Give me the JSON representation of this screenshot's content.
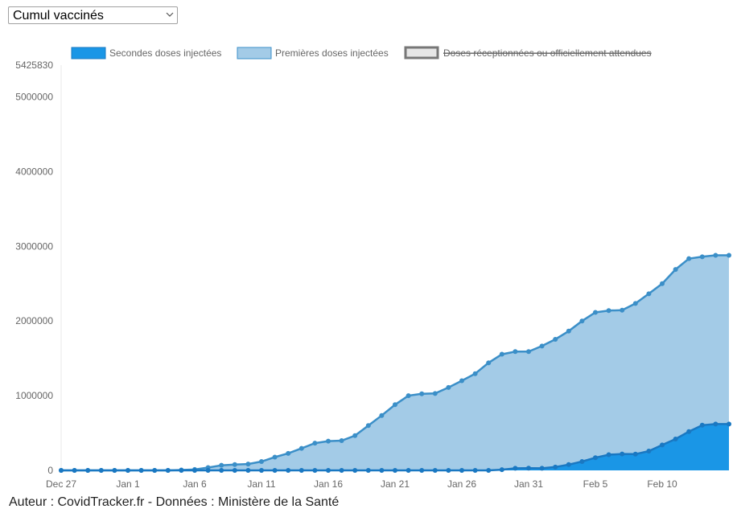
{
  "selector": {
    "value": "Cumul vaccinés"
  },
  "footer": "Auteur : CovidTracker.fr - Données : Ministère de la Santé",
  "colors": {
    "second_fill": "#1a96e6",
    "second_line": "#1a78c2",
    "first_fill": "#a3cbe7",
    "first_line": "#3b8fc8",
    "axis_text": "#666666"
  },
  "chart_data": {
    "type": "area",
    "stacked": false,
    "y_top_label": "5425830",
    "ylim": [
      0,
      5425830
    ],
    "y_ticks": [
      0,
      1000000,
      2000000,
      3000000,
      4000000,
      5000000
    ],
    "x_tick_labels": [
      "Dec 27",
      "Jan 1",
      "Jan 6",
      "Jan 11",
      "Jan 16",
      "Jan 21",
      "Jan 26",
      "Jan 31",
      "Feb 5",
      "Feb 10"
    ],
    "legend_position": "top",
    "grid": false,
    "x_start": "2020-12-27",
    "series": [
      {
        "name": "Secondes doses injectées",
        "hidden": false,
        "values": [
          0,
          0,
          0,
          0,
          0,
          0,
          0,
          0,
          0,
          0,
          0,
          0,
          0,
          0,
          0,
          0,
          0,
          0,
          0,
          0,
          0,
          0,
          0,
          0,
          0,
          0,
          0,
          0,
          0,
          0,
          0,
          0,
          0,
          10000,
          28000,
          30000,
          28000,
          45000,
          78000,
          118000,
          170000,
          210000,
          220000,
          218000,
          258000,
          340000,
          420000,
          520000,
          605000,
          620000,
          620000
        ]
      },
      {
        "name": "Premières doses injectées",
        "hidden": false,
        "values": [
          0,
          0,
          0,
          0,
          0,
          0,
          0,
          0,
          0,
          5000,
          12000,
          38000,
          68000,
          78000,
          85000,
          118000,
          178000,
          228000,
          295000,
          365000,
          392000,
          398000,
          465000,
          600000,
          735000,
          880000,
          1000000,
          1025000,
          1030000,
          1110000,
          1200000,
          1295000,
          1440000,
          1555000,
          1590000,
          1590000,
          1665000,
          1755000,
          1865000,
          2000000,
          2115000,
          2140000,
          2145000,
          2235000,
          2365000,
          2500000,
          2690000,
          2835000,
          2860000,
          2880000,
          2880000
        ]
      },
      {
        "name": "Doses réceptionnées ou officiellement attendues",
        "hidden": true,
        "values": []
      }
    ]
  }
}
